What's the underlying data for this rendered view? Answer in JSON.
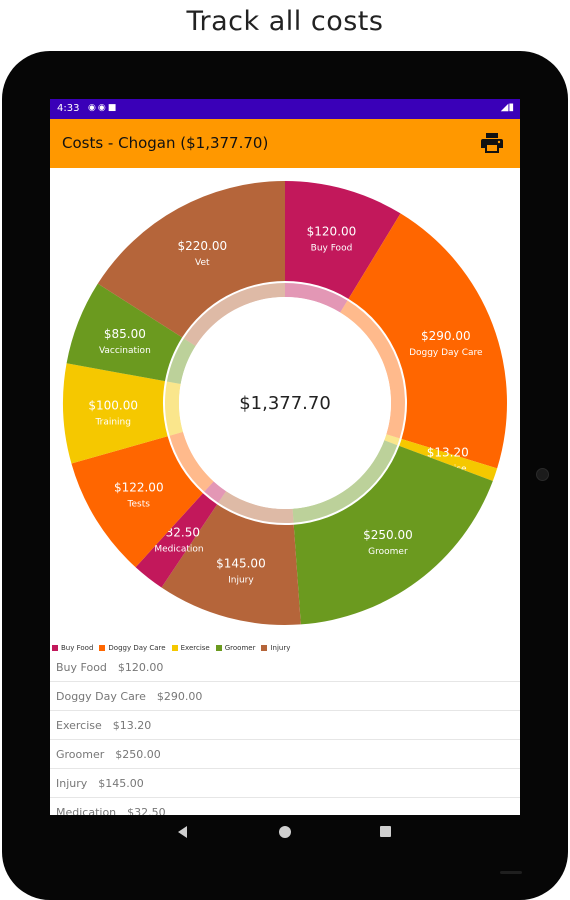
{
  "caption": "Track all costs",
  "status_bar": {
    "time": "4:33"
  },
  "app_bar": {
    "title": "Costs - Chogan ($1,377.70)",
    "print_icon": "print-icon"
  },
  "chart_data": {
    "type": "pie",
    "donut": true,
    "center_label": "$1,377.70",
    "slices": [
      {
        "label": "Buy Food",
        "value": 120.0,
        "value_label": "$120.00",
        "color": "#c2185b"
      },
      {
        "label": "Doggy Day Care",
        "value": 290.0,
        "value_label": "$290.00",
        "color": "#ff6600"
      },
      {
        "label": "Exercise",
        "value": 13.2,
        "value_label": "$13.20",
        "color": "#f5c800"
      },
      {
        "label": "Groomer",
        "value": 250.0,
        "value_label": "$250.00",
        "color": "#6b9a1f"
      },
      {
        "label": "Injury",
        "value": 145.0,
        "value_label": "$145.00",
        "color": "#b5653a"
      },
      {
        "label": "Medication",
        "value": 32.5,
        "value_label": "$32.50",
        "color": "#c2185b"
      },
      {
        "label": "Tests",
        "value": 122.0,
        "value_label": "$122.00",
        "color": "#ff6600"
      },
      {
        "label": "Training",
        "value": 100.0,
        "value_label": "$100.00",
        "color": "#f5c800"
      },
      {
        "label": "Vaccination",
        "value": 85.0,
        "value_label": "$85.00",
        "color": "#6b9a1f"
      },
      {
        "label": "Vet",
        "value": 220.0,
        "value_label": "$220.00",
        "color": "#b5653a"
      }
    ],
    "legend": [
      {
        "label": "Buy Food",
        "color": "#c2185b"
      },
      {
        "label": "Doggy Day Care",
        "color": "#ff6600"
      },
      {
        "label": "Exercise",
        "color": "#f5c800"
      },
      {
        "label": "Groomer",
        "color": "#6b9a1f"
      },
      {
        "label": "Injury",
        "color": "#b5653a"
      }
    ],
    "legend_placement": "bottom-left"
  },
  "cost_list": [
    {
      "name": "Buy Food",
      "amount": "$120.00"
    },
    {
      "name": "Doggy Day Care",
      "amount": "$290.00"
    },
    {
      "name": "Exercise",
      "amount": "$13.20"
    },
    {
      "name": "Groomer",
      "amount": "$250.00"
    },
    {
      "name": "Injury",
      "amount": "$145.00"
    },
    {
      "name": "Medication",
      "amount": "$32.50"
    }
  ]
}
